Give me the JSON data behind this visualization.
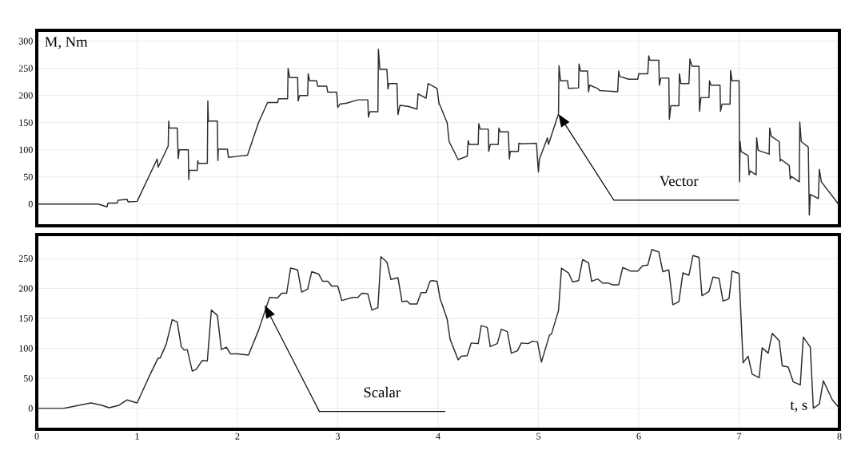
{
  "chart_data": [
    {
      "type": "line",
      "ylabel": "M, Nm",
      "color": "#2b2b2b",
      "grid": true,
      "tick_labels": "y",
      "xlim": [
        0,
        8
      ],
      "ylim": [
        -40,
        320
      ],
      "xticks": [
        0,
        1,
        2,
        3,
        4,
        5,
        6,
        7,
        8
      ],
      "yticks": [
        0,
        50,
        100,
        150,
        200,
        250,
        300
      ],
      "annotations": [
        "Vector"
      ],
      "x": [
        0,
        0.61,
        0.7,
        0.71,
        0.8,
        0.81,
        0.9,
        0.91,
        1.0,
        1.2,
        1.21,
        1.31,
        1.315,
        1.32,
        1.4,
        1.41,
        1.42,
        1.51,
        1.515,
        1.52,
        1.6,
        1.605,
        1.61,
        1.7,
        1.705,
        1.71,
        1.8,
        1.805,
        1.81,
        1.9,
        1.91,
        2.0,
        2.1,
        2.21,
        2.3,
        2.4,
        2.41,
        2.5,
        2.505,
        2.52,
        2.6,
        2.605,
        2.62,
        2.7,
        2.705,
        2.72,
        2.79,
        2.8,
        2.89,
        2.9,
        2.99,
        3.0,
        3.02,
        3.09,
        3.2,
        3.3,
        3.305,
        3.32,
        3.4,
        3.405,
        3.42,
        3.49,
        3.5,
        3.51,
        3.59,
        3.6,
        3.62,
        3.7,
        3.79,
        3.8,
        3.88,
        3.9,
        3.99,
        4.01,
        4.01,
        4.09,
        4.11,
        4.2,
        4.29,
        4.3,
        4.31,
        4.4,
        4.405,
        4.42,
        4.5,
        4.505,
        4.52,
        4.6,
        4.605,
        4.62,
        4.7,
        4.71,
        4.72,
        4.8,
        4.805,
        4.83,
        4.98,
        5.0,
        5.01,
        5.09,
        5.1,
        5.2,
        5.205,
        5.22,
        5.29,
        5.3,
        5.4,
        5.405,
        5.42,
        5.49,
        5.5,
        5.51,
        5.59,
        5.61,
        5.79,
        5.8,
        5.81,
        5.9,
        5.99,
        6.0,
        6.09,
        6.1,
        6.11,
        6.2,
        6.205,
        6.22,
        6.3,
        6.305,
        6.32,
        6.4,
        6.405,
        6.42,
        6.5,
        6.51,
        6.53,
        6.6,
        6.605,
        6.62,
        6.7,
        6.705,
        6.72,
        6.81,
        6.815,
        6.83,
        6.91,
        6.915,
        6.93,
        7.0,
        7.005,
        7.01,
        7.02,
        7.09,
        7.1,
        7.11,
        7.17,
        7.175,
        7.19,
        7.3,
        7.305,
        7.32,
        7.4,
        7.41,
        7.42,
        7.5,
        7.51,
        7.52,
        7.6,
        7.605,
        7.62,
        7.69,
        7.7,
        7.71,
        7.79,
        7.8,
        7.82,
        7.99
      ],
      "values": [
        0,
        0,
        -5,
        2,
        2,
        7,
        9,
        4,
        5,
        83,
        68,
        107,
        153,
        140,
        140,
        84,
        100,
        100,
        45,
        62,
        62,
        80,
        75,
        75,
        190,
        153,
        153,
        80,
        101,
        101,
        86,
        88,
        90,
        150,
        187,
        187,
        194,
        194,
        250,
        233,
        233,
        190,
        200,
        200,
        240,
        227,
        227,
        217,
        217,
        206,
        206,
        178,
        184,
        186,
        192,
        192,
        160,
        170,
        170,
        285,
        248,
        248,
        212,
        222,
        222,
        165,
        182,
        180,
        175,
        203,
        195,
        222,
        213,
        184,
        186,
        150,
        115,
        82,
        88,
        117,
        110,
        110,
        148,
        138,
        138,
        97,
        110,
        110,
        140,
        133,
        133,
        83,
        97,
        97,
        112,
        111,
        112,
        59,
        83,
        122,
        110,
        166,
        255,
        227,
        227,
        213,
        214,
        258,
        245,
        245,
        207,
        219,
        213,
        209,
        207,
        245,
        235,
        230,
        230,
        240,
        240,
        273,
        265,
        265,
        219,
        232,
        232,
        156,
        181,
        181,
        240,
        222,
        222,
        267,
        254,
        254,
        171,
        196,
        196,
        227,
        219,
        219,
        171,
        184,
        184,
        246,
        227,
        227,
        41,
        115,
        97,
        89,
        54,
        61,
        54,
        122,
        99,
        92,
        140,
        125,
        115,
        79,
        82,
        71,
        46,
        51,
        41,
        151,
        115,
        105,
        -20,
        18,
        10,
        64,
        41,
        0
      ]
    },
    {
      "type": "line",
      "xlabel": "t, s",
      "color": "#2b2b2b",
      "grid": true,
      "xlim": [
        0,
        8
      ],
      "ylim": [
        -35,
        290
      ],
      "xticks": [
        0,
        1,
        2,
        3,
        4,
        5,
        6,
        7,
        8
      ],
      "yticks": [
        0,
        50,
        100,
        150,
        200,
        250
      ],
      "annotations": [
        "Scalar"
      ],
      "x": [
        0,
        0.27,
        0.54,
        0.65,
        0.72,
        0.82,
        0.9,
        1.0,
        1.12,
        1.21,
        1.23,
        1.29,
        1.35,
        1.4,
        1.44,
        1.47,
        1.5,
        1.55,
        1.59,
        1.65,
        1.7,
        1.74,
        1.8,
        1.84,
        1.89,
        1.93,
        2.0,
        2.11,
        2.21,
        2.32,
        2.4,
        2.44,
        2.49,
        2.53,
        2.6,
        2.64,
        2.7,
        2.74,
        2.81,
        2.85,
        2.9,
        2.94,
        3.0,
        3.04,
        3.15,
        3.2,
        3.24,
        3.3,
        3.34,
        3.4,
        3.43,
        3.49,
        3.53,
        3.6,
        3.64,
        3.69,
        3.72,
        3.79,
        3.83,
        3.88,
        3.92,
        3.94,
        3.99,
        4.02,
        4.09,
        4.12,
        4.2,
        4.23,
        4.29,
        4.33,
        4.4,
        4.43,
        4.49,
        4.52,
        4.59,
        4.63,
        4.69,
        4.73,
        4.79,
        4.83,
        4.9,
        4.94,
        4.99,
        5.03,
        5.11,
        5.13,
        5.2,
        5.23,
        5.3,
        5.34,
        5.4,
        5.44,
        5.5,
        5.53,
        5.59,
        5.64,
        5.7,
        5.74,
        5.8,
        5.84,
        5.92,
        5.99,
        6.04,
        6.09,
        6.13,
        6.2,
        6.24,
        6.3,
        6.34,
        6.4,
        6.44,
        6.5,
        6.54,
        6.6,
        6.63,
        6.7,
        6.74,
        6.8,
        6.84,
        6.9,
        6.93,
        7.0,
        7.04,
        7.09,
        7.13,
        7.2,
        7.23,
        7.29,
        7.33,
        7.4,
        7.43,
        7.49,
        7.54,
        7.61,
        7.64,
        7.71,
        7.74,
        7.8,
        7.84,
        7.93,
        8.0
      ],
      "values": [
        0,
        0,
        9,
        5,
        1,
        5,
        14,
        9,
        53,
        84,
        84,
        107,
        148,
        144,
        103,
        97,
        98,
        62,
        65,
        80,
        79,
        164,
        155,
        98,
        102,
        91,
        91,
        89,
        130,
        185,
        184,
        192,
        192,
        234,
        231,
        194,
        199,
        228,
        224,
        212,
        212,
        204,
        204,
        180,
        185,
        185,
        192,
        191,
        164,
        168,
        253,
        244,
        215,
        218,
        178,
        179,
        174,
        174,
        193,
        193,
        212,
        213,
        212,
        183,
        149,
        115,
        81,
        87,
        88,
        109,
        108,
        138,
        135,
        103,
        108,
        132,
        128,
        92,
        96,
        109,
        108,
        112,
        111,
        77,
        122,
        124,
        163,
        234,
        226,
        211,
        213,
        248,
        243,
        212,
        216,
        209,
        209,
        206,
        206,
        235,
        229,
        229,
        238,
        239,
        265,
        261,
        228,
        231,
        173,
        178,
        226,
        222,
        255,
        252,
        188,
        195,
        219,
        217,
        179,
        183,
        229,
        225,
        76,
        87,
        57,
        51,
        101,
        92,
        125,
        113,
        71,
        69,
        44,
        39,
        119,
        102,
        0,
        7,
        46,
        14,
        0
      ]
    }
  ]
}
